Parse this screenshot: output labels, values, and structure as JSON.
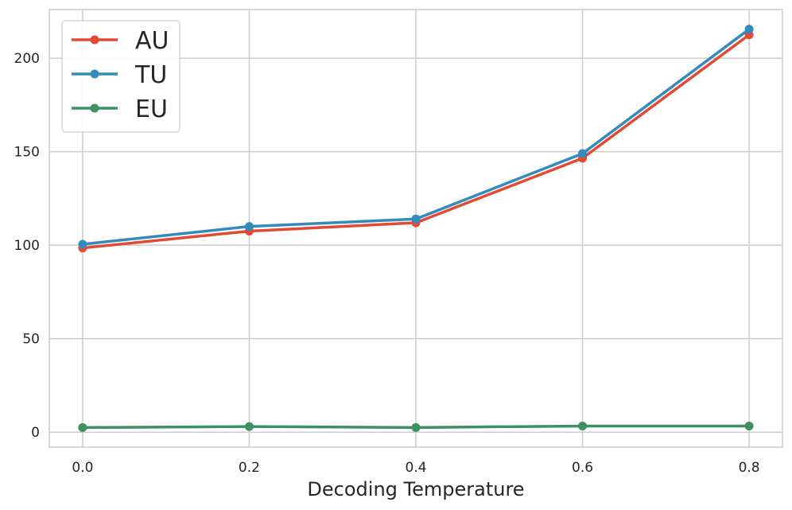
{
  "chart_data": {
    "type": "line",
    "title": "",
    "xlabel": "Decoding Temperature",
    "ylabel": "",
    "x": [
      0.0,
      0.2,
      0.4,
      0.6,
      0.8
    ],
    "x_tick_labels": [
      "0.0",
      "0.2",
      "0.4",
      "0.6",
      "0.8"
    ],
    "y_ticks": [
      0,
      50,
      100,
      150,
      200
    ],
    "y_tick_labels": [
      "0",
      "50",
      "100",
      "150",
      "200"
    ],
    "xlim": [
      -0.04,
      0.84
    ],
    "ylim": [
      -8,
      226
    ],
    "grid": true,
    "legend_position": "top-left",
    "series": [
      {
        "name": "AU",
        "color": "#e24a33",
        "values": [
          98.5,
          107.5,
          112,
          146.5,
          212.5
        ]
      },
      {
        "name": "TU",
        "color": "#348abd",
        "values": [
          100.5,
          110,
          114,
          149,
          215.5
        ]
      },
      {
        "name": "EU",
        "color": "#3f8f63",
        "values": [
          2.5,
          3,
          2.5,
          3.3,
          3.3
        ]
      }
    ]
  }
}
